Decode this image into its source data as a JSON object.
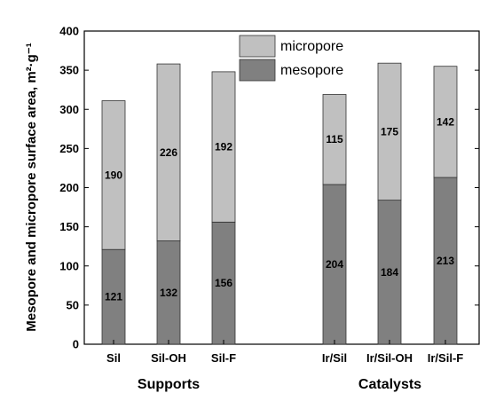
{
  "chart_data": {
    "type": "bar",
    "stacked": true,
    "categories": [
      "Sil",
      "Sil-OH",
      "Sil-F",
      "Ir/Sil",
      "Ir/Sil-OH",
      "Ir/Sil-F"
    ],
    "groups": [
      {
        "label": "Supports",
        "categories": [
          "Sil",
          "Sil-OH",
          "Sil-F"
        ]
      },
      {
        "label": "Catalysts",
        "categories": [
          "Ir/Sil",
          "Ir/Sil-OH",
          "Ir/Sil-F"
        ]
      }
    ],
    "series": [
      {
        "name": "mesopore",
        "values": [
          121,
          132,
          156,
          204,
          184,
          213
        ],
        "labels": [
          "121",
          "132",
          "156",
          "204",
          "184",
          "213"
        ],
        "color": "#808080"
      },
      {
        "name": "micropore",
        "values": [
          190,
          226,
          192,
          115,
          175,
          142
        ],
        "labels": [
          "190",
          "226",
          "192",
          "115",
          "175",
          "142"
        ],
        "color": "#c0c0c0"
      }
    ],
    "ylabel": "Mesopore and micropore surface area, m²·g⁻¹",
    "ylim": [
      0,
      400
    ],
    "yticks": [
      "0",
      "50",
      "100",
      "150",
      "200",
      "250",
      "300",
      "350",
      "400"
    ],
    "legend_position": "top-center",
    "grid": false
  }
}
